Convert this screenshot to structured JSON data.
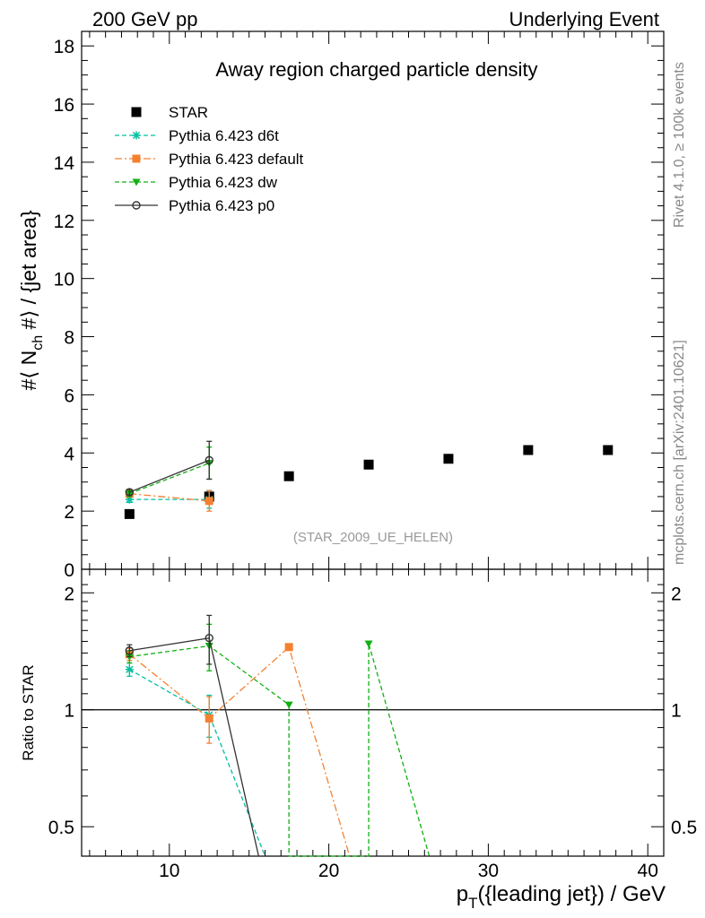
{
  "header": {
    "left_title": "200 GeV pp",
    "right_title": "Underlying Event"
  },
  "side_text": {
    "rivet": "Rivet 4.1.0, ≥ 100k events",
    "mcplots": "mcplots.cern.ch [arXiv:2401.10621]"
  },
  "chart_data": [
    {
      "type": "scatter",
      "panel": "main",
      "title": "Away region charged particle density",
      "analysis_tag": "(STAR_2009_UE_HELEN)",
      "ylabel_parts": [
        "#⟨ N",
        "ch",
        " #⟩ / {jet area}"
      ],
      "xlim": [
        4.5,
        41
      ],
      "ylim": [
        0,
        18.5
      ],
      "y_ticks": [
        0,
        2,
        4,
        6,
        8,
        10,
        12,
        14,
        16,
        18
      ],
      "legend_position": "top-left",
      "series": [
        {
          "name": "STAR",
          "marker": "square",
          "color": "#000000",
          "x": [
            7.5,
            12.5,
            17.5,
            22.5,
            27.5,
            32.5,
            37.5
          ],
          "y": [
            1.9,
            2.5,
            3.2,
            3.6,
            3.8,
            4.1,
            4.1
          ],
          "yerr": [
            0.05,
            0.2,
            0.1,
            0.1,
            0.1,
            0.1,
            0.1
          ]
        },
        {
          "name": "Pythia 6.423 d6t",
          "marker": "star",
          "color": "#00c0a0",
          "dash": "dashed",
          "x": [
            7.5,
            12.5
          ],
          "y": [
            2.4,
            2.4
          ],
          "yerr": [
            0.1,
            0.3
          ]
        },
        {
          "name": "Pythia 6.423 default",
          "marker": "square",
          "color": "#f58030",
          "dash": "dashdot",
          "x": [
            7.5,
            12.5
          ],
          "y": [
            2.6,
            2.35
          ],
          "yerr": [
            0.1,
            0.35
          ]
        },
        {
          "name": "Pythia 6.423 dw",
          "marker": "triangle-down",
          "color": "#10b010",
          "dash": "dashed",
          "x": [
            7.5,
            12.5
          ],
          "y": [
            2.6,
            3.65
          ],
          "yerr": [
            0.1,
            0.55
          ]
        },
        {
          "name": "Pythia 6.423 p0",
          "marker": "open-circle",
          "color": "#333333",
          "dash": "solid",
          "x": [
            7.5,
            12.5
          ],
          "y": [
            2.65,
            3.75
          ],
          "yerr": [
            0.1,
            0.65
          ]
        }
      ]
    },
    {
      "type": "line",
      "panel": "ratio",
      "ylabel": "Ratio to STAR",
      "xlabel_parts": [
        "p",
        "T",
        "({leading jet}) / GeV"
      ],
      "xlim": [
        4.5,
        41
      ],
      "ylim": [
        0.42,
        2.3
      ],
      "y_ticks": [
        0.5,
        1,
        2
      ],
      "y_tick_labels": [
        "0.5",
        "1",
        "2"
      ],
      "x_ticks": [
        10,
        20,
        30,
        40
      ],
      "reference_line": 1,
      "series": [
        {
          "name": "Pythia 6.423 d6t",
          "marker": "star",
          "color": "#00c0a0",
          "dash": "dashed",
          "x": [
            7.5,
            12.5,
            16.0
          ],
          "y": [
            1.27,
            0.97,
            0.42
          ],
          "yerr": [
            0.05,
            0.12,
            0
          ],
          "marked": [
            true,
            true,
            false
          ]
        },
        {
          "name": "Pythia 6.423 default",
          "marker": "square",
          "color": "#f58030",
          "dash": "dashdot",
          "x": [
            7.5,
            12.5,
            17.5,
            21.3
          ],
          "y": [
            1.39,
            0.95,
            1.45,
            0.42
          ],
          "yerr": [
            0.05,
            0.13,
            0,
            0
          ],
          "marked": [
            true,
            true,
            true,
            false
          ]
        },
        {
          "name": "Pythia 6.423 dw",
          "marker": "triangle-down",
          "color": "#10b010",
          "dash": "dashed",
          "x": [
            7.5,
            12.5,
            17.5,
            17.5,
            22.5,
            22.5,
            26.3
          ],
          "y": [
            1.37,
            1.46,
            1.03,
            0.42,
            0.42,
            1.48,
            0.42
          ],
          "yerr": [
            0.05,
            0.2,
            0,
            0,
            0,
            0,
            0
          ],
          "marked": [
            true,
            true,
            true,
            false,
            false,
            true,
            false
          ]
        },
        {
          "name": "Pythia 6.423 p0",
          "marker": "open-circle",
          "color": "#333333",
          "dash": "solid",
          "x": [
            7.5,
            12.5,
            15.6
          ],
          "y": [
            1.42,
            1.53,
            0.42
          ],
          "yerr": [
            0.05,
            0.22,
            0
          ],
          "marked": [
            true,
            true,
            false
          ]
        }
      ]
    }
  ]
}
